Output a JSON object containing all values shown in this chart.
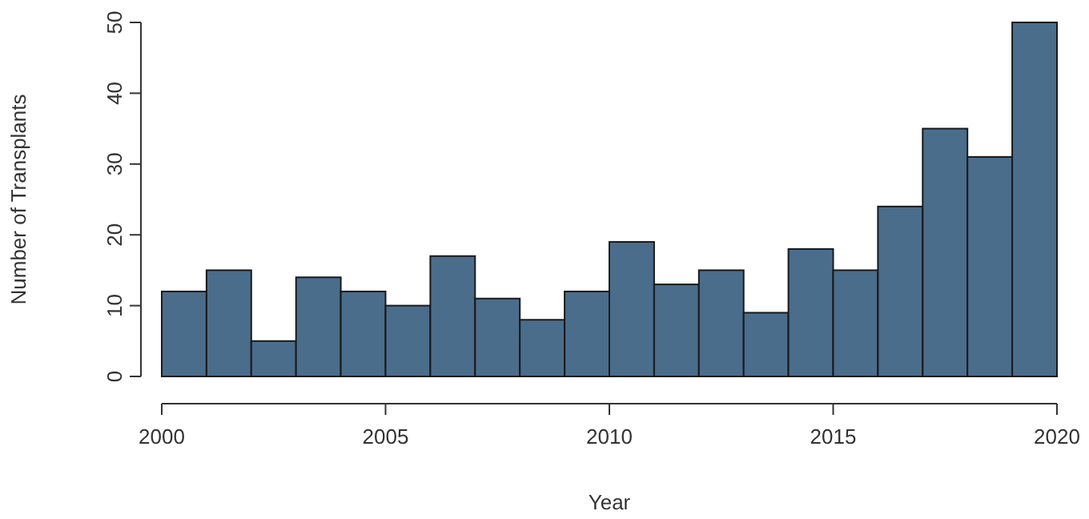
{
  "chart_data": {
    "type": "histogram",
    "xlabel": "Year",
    "ylabel": "Number of Transplants",
    "bins": [
      2000,
      2001,
      2002,
      2003,
      2004,
      2005,
      2006,
      2007,
      2008,
      2009,
      2010,
      2011,
      2012,
      2013,
      2014,
      2015,
      2016,
      2017,
      2018,
      2019,
      2020
    ],
    "values": [
      12,
      15,
      5,
      14,
      12,
      10,
      17,
      11,
      8,
      12,
      19,
      13,
      15,
      9,
      18,
      15,
      24,
      35,
      31,
      50
    ],
    "color": "#4a6d8c",
    "xlim": [
      2000,
      2020
    ],
    "xticks": [
      2000,
      2005,
      2010,
      2015,
      2020
    ],
    "ylim": [
      0,
      50
    ],
    "yticks": [
      0,
      10,
      20,
      30,
      40,
      50
    ],
    "grid": false
  }
}
